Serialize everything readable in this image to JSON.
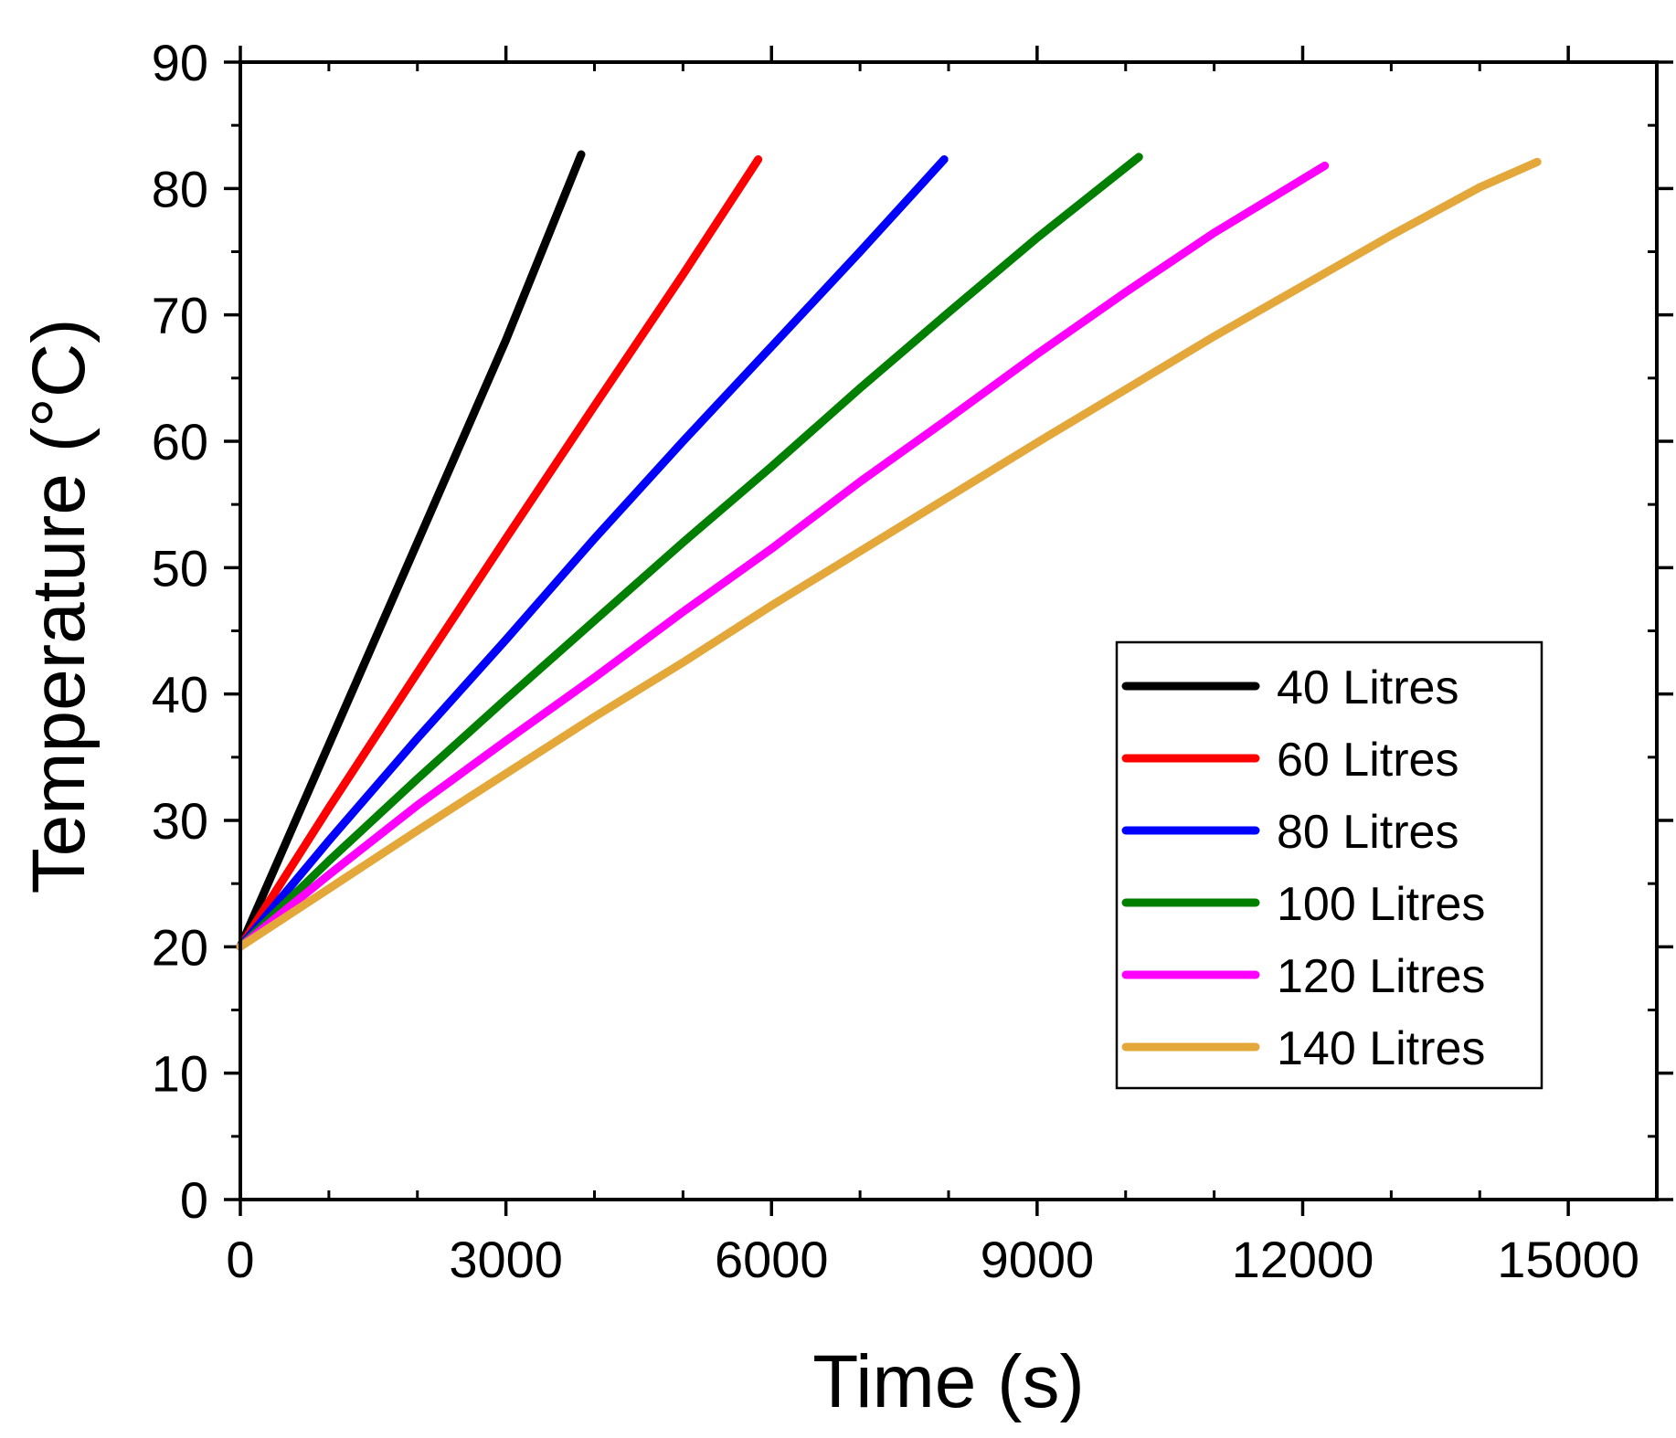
{
  "chart_data": {
    "type": "line",
    "title": "",
    "xlabel": "Time (s)",
    "ylabel": "Temperature (°C)",
    "xlim": [
      0,
      16000
    ],
    "ylim": [
      0,
      90
    ],
    "xticks": [
      0,
      3000,
      6000,
      9000,
      12000,
      15000
    ],
    "xtick_labels": [
      "0",
      "3000",
      "6000",
      "9000",
      "12000",
      "15000"
    ],
    "x_minor_step": 1000,
    "yticks": [
      0,
      10,
      20,
      30,
      40,
      50,
      60,
      70,
      80,
      90
    ],
    "ytick_labels": [
      "0",
      "10",
      "20",
      "30",
      "40",
      "50",
      "60",
      "70",
      "80",
      "90"
    ],
    "y_minor_step": 5,
    "grid": false,
    "legend_position": "center-right",
    "series": [
      {
        "name": "40 Litres",
        "color": "#000000",
        "x": [
          0,
          1000,
          2000,
          3000,
          3850
        ],
        "y": [
          20,
          36,
          52,
          68,
          82.7
        ]
      },
      {
        "name": "60 Litres",
        "color": "#ff0000",
        "x": [
          0,
          1000,
          2000,
          3000,
          4000,
          5000,
          5850
        ],
        "y": [
          20,
          31,
          41.7,
          52.3,
          62.8,
          73.2,
          82.3
        ]
      },
      {
        "name": "80 Litres",
        "color": "#0000ff",
        "x": [
          0,
          1000,
          2000,
          3000,
          4000,
          5000,
          6000,
          7000,
          7950
        ],
        "y": [
          20,
          28.4,
          36.5,
          44.3,
          52.3,
          60,
          67.5,
          75,
          82.3
        ]
      },
      {
        "name": "100 Litres",
        "color": "#007f00",
        "x": [
          0,
          1000,
          2000,
          3000,
          4000,
          5000,
          6000,
          7000,
          8000,
          9000,
          10150
        ],
        "y": [
          20,
          26.8,
          33.3,
          39.6,
          45.8,
          52,
          58,
          64.2,
          70.2,
          76.1,
          82.5
        ]
      },
      {
        "name": "120 Litres",
        "color": "#ff00ff",
        "x": [
          0,
          1000,
          2000,
          3000,
          4000,
          5000,
          6000,
          7000,
          8000,
          9000,
          10000,
          11000,
          12250
        ],
        "y": [
          20,
          25.7,
          31.2,
          36.3,
          41.3,
          46.5,
          51.5,
          56.8,
          61.8,
          66.9,
          71.8,
          76.5,
          81.8
        ]
      },
      {
        "name": "140 Litres",
        "color": "#e3a73a",
        "x": [
          0,
          1000,
          2000,
          3000,
          4000,
          5000,
          6000,
          7000,
          8000,
          9000,
          10000,
          11000,
          12000,
          13000,
          14000,
          14650
        ],
        "y": [
          20,
          24.6,
          29.2,
          33.7,
          38.2,
          42.5,
          47,
          51.3,
          55.6,
          59.9,
          64.1,
          68.3,
          72.3,
          76.3,
          80.1,
          82.1
        ]
      }
    ]
  }
}
